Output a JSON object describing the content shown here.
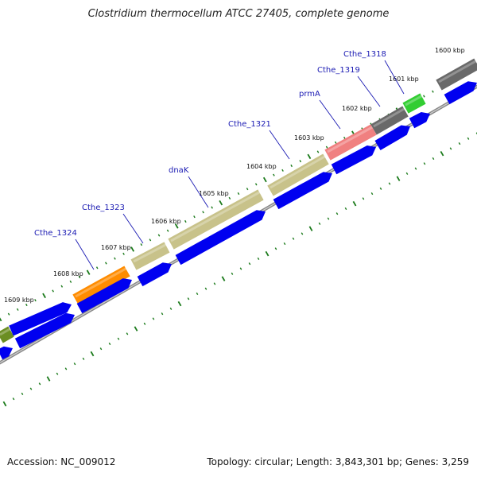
{
  "title": "Clostridium thermocellum ATCC 27405, complete genome",
  "footer": {
    "accession": "Accession: NC_009012",
    "summary": "Topology: circular; Length: 3,843,301 bp; Genes: 3,259"
  },
  "ticks": [
    "1600 kbp",
    "1601 kbp",
    "1602 kbp",
    "1603 kbp",
    "1604 kbp",
    "1605 kbp",
    "1606 kbp",
    "1607 kbp",
    "1608 kbp",
    "1609 kbp"
  ],
  "genes": [
    "Cthe_1318",
    "Cthe_1319",
    "prmA",
    "Cthe_1321",
    "dnaK",
    "Cthe_1323",
    "Cthe_1324"
  ],
  "colors": {
    "cds": "#0000f0",
    "gene_olive": "#c8c28a",
    "gene_orange": "#ff8c00",
    "gene_pink": "#f08080",
    "gene_gray": "#696969",
    "gene_green": "#32cd32",
    "gene_darkolive": "#6b8e23",
    "tick": "#1a7a1a",
    "backbone": "#888888"
  }
}
